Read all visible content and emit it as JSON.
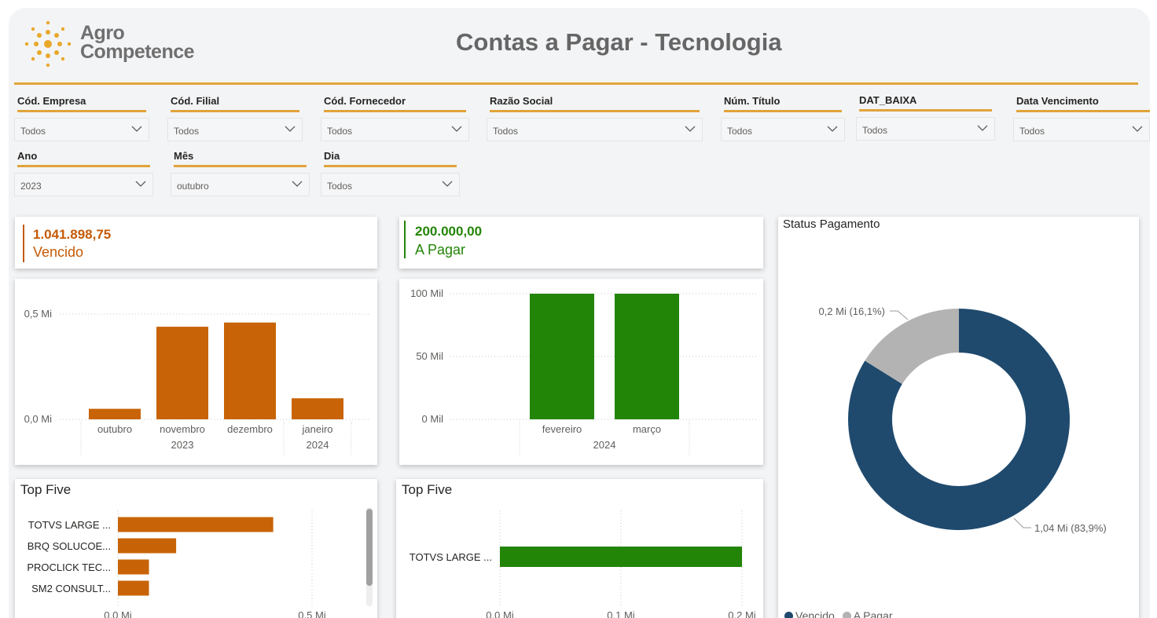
{
  "header": {
    "logo_line1": "Agro",
    "logo_line2": "Competence",
    "title": "Contas a Pagar - Tecnologia"
  },
  "filters": [
    {
      "label": "Cód. Empresa",
      "value": "Todos"
    },
    {
      "label": "Cód. Filial",
      "value": "Todos"
    },
    {
      "label": "Cód. Fornecedor",
      "value": "Todos"
    },
    {
      "label": "Razão Social",
      "value": "Todos"
    },
    {
      "label": "Núm. Título",
      "value": "Todos"
    },
    {
      "label": "DAT_BAIXA",
      "value": "Todos"
    },
    {
      "label": "Data Vencimento",
      "value": "Todos"
    },
    {
      "label": "Ano",
      "value": "2023"
    },
    {
      "label": "Mês",
      "value": "outubro"
    },
    {
      "label": "Dia",
      "value": "Todos"
    }
  ],
  "kpis": {
    "vencido": {
      "value": "1.041.898,75",
      "label": "Vencido",
      "color": "#c55a07"
    },
    "a_pagar": {
      "value": "200.000,00",
      "label": "A Pagar",
      "color": "#238507"
    }
  },
  "panels": {
    "top_five_left": "Top Five",
    "top_five_right": "Top Five",
    "status": "Status Pagamento"
  },
  "legend": {
    "vencido": "Vencido",
    "a_pagar": "A Pagar"
  },
  "colors": {
    "orange": "#c86407",
    "green": "#238507",
    "navy": "#1f4a6e",
    "gray": "#b3b3b3",
    "accent": "#e1a43a"
  },
  "chart_data": [
    {
      "type": "bar",
      "categories": [
        "outubro",
        "novembro",
        "dezembro",
        "janeiro"
      ],
      "groups": [
        {
          "label": "2023",
          "span": 3
        },
        {
          "label": "2024",
          "span": 1
        }
      ],
      "values": [
        0.05,
        0.44,
        0.46,
        0.1
      ],
      "yticks": [
        "0,0 Mi",
        "0,5 Mi"
      ],
      "ylim": [
        0,
        0.5
      ],
      "grid": true,
      "color": "#c86407"
    },
    {
      "type": "bar",
      "categories": [
        "fevereiro",
        "março"
      ],
      "groups": [
        {
          "label": "2024",
          "span": 2
        }
      ],
      "values": [
        100,
        100
      ],
      "yticks": [
        "0 Mil",
        "50 Mil",
        "100 Mil"
      ],
      "ylim": [
        0,
        100
      ],
      "grid": true,
      "color": "#238507"
    },
    {
      "type": "bar",
      "orientation": "horizontal",
      "categories": [
        "TOTVS LARGE ...",
        "BRQ SOLUCOE...",
        "PROCLICK TEC...",
        "SM2 CONSULT..."
      ],
      "values": [
        0.4,
        0.15,
        0.08,
        0.08
      ],
      "xticks": [
        "0,0 Mi",
        "0,5 Mi"
      ],
      "xlim": [
        0,
        0.5
      ],
      "grid": true,
      "color": "#c86407"
    },
    {
      "type": "bar",
      "orientation": "horizontal",
      "categories": [
        "TOTVS LARGE ..."
      ],
      "values": [
        0.2
      ],
      "xticks": [
        "0,0 Mi",
        "0,1 Mi",
        "0,2 Mi"
      ],
      "xlim": [
        0,
        0.2
      ],
      "grid": true,
      "color": "#238507"
    },
    {
      "type": "pie",
      "donut": true,
      "categories": [
        "Vencido",
        "A Pagar"
      ],
      "values": [
        1.04,
        0.2
      ],
      "labels": [
        "1,04 Mi (83,9%)",
        "0,2 Mi (16,1%)"
      ],
      "colors": [
        "#1f4a6e",
        "#b3b3b3"
      ],
      "legend": "bottom-left"
    }
  ]
}
